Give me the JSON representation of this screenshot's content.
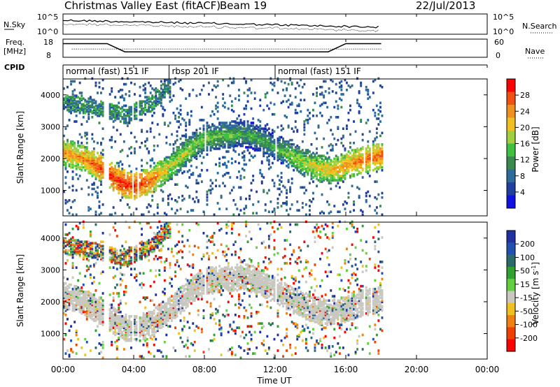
{
  "header": {
    "title": "Christmas Valley East (fitACF)",
    "beam": "Beam 19",
    "date": "22/Jul/2013"
  },
  "nsky_panel": {
    "left_label": "N.Sky",
    "left_ticks": [
      "10^5",
      "10^0"
    ],
    "right_ticks": [
      "10^5",
      "10^0"
    ],
    "right_label": "N.Search"
  },
  "freq_panel": {
    "left_label_line1": "Freq.",
    "left_label_line2": "[MHz]",
    "left_ticks": [
      "18",
      "8"
    ],
    "right_ticks": [
      "60",
      "0"
    ],
    "right_label": "Nave"
  },
  "cpid": {
    "label": "CPID",
    "segments": [
      {
        "text": "normal (fast) 151 IF",
        "start_hour": 0.0
      },
      {
        "text": "rbsp 201 IF",
        "start_hour": 6.0
      },
      {
        "text": "normal (fast) 151 IF",
        "start_hour": 12.0
      }
    ]
  },
  "x_axis": {
    "label": "Time UT",
    "range_hours": [
      0,
      24
    ],
    "ticks": [
      "00:00",
      "04:00",
      "08:00",
      "12:00",
      "16:00",
      "20:00",
      "00:00"
    ]
  },
  "colors": {
    "power_scale": [
      "#1010e0",
      "#2040a0",
      "#2e6a9a",
      "#3a8a50",
      "#40c040",
      "#a0d040",
      "#f0c020",
      "#f09020",
      "#f05010",
      "#ff0000"
    ],
    "velocity_scale": [
      "#2030a0",
      "#2050b0",
      "#2a6a6a",
      "#30a030",
      "#60d040",
      "#c8c8c0",
      "#f0c020",
      "#f08010",
      "#f04000",
      "#ff0000"
    ]
  },
  "chart_data": [
    {
      "type": "heatmap",
      "panel": "power",
      "ylabel": "Slant Range [km]",
      "ylim": [
        200,
        4500
      ],
      "yticks": [
        "1000",
        "2000",
        "3000",
        "4000"
      ],
      "xlim": [
        0,
        24
      ],
      "colorbar": {
        "label": "Power [dB]",
        "ticks": [
          "4",
          "8",
          "12",
          "16",
          "20",
          "24",
          "28"
        ],
        "range": [
          0,
          32
        ]
      },
      "band": {
        "center_km": [
          [
            0.0,
            2150
          ],
          [
            0.5,
            2080
          ],
          [
            1.0,
            2000
          ],
          [
            1.5,
            1850
          ],
          [
            2.0,
            1700
          ],
          [
            2.5,
            1500
          ],
          [
            3.0,
            1300
          ],
          [
            3.5,
            1150
          ],
          [
            4.0,
            1100
          ],
          [
            4.5,
            1180
          ],
          [
            5.0,
            1300
          ],
          [
            5.5,
            1500
          ],
          [
            6.0,
            1700
          ],
          [
            6.5,
            1950
          ],
          [
            7.0,
            2200
          ],
          [
            7.5,
            2450
          ],
          [
            8.0,
            2600
          ],
          [
            8.5,
            2650
          ],
          [
            9.0,
            2700
          ],
          [
            9.5,
            2700
          ],
          [
            10.0,
            2750
          ],
          [
            10.5,
            2700
          ],
          [
            11.0,
            2600
          ],
          [
            11.5,
            2450
          ],
          [
            12.0,
            2300
          ],
          [
            12.5,
            2150
          ],
          [
            13.0,
            2000
          ],
          [
            13.5,
            1850
          ],
          [
            14.0,
            1750
          ],
          [
            14.5,
            1650
          ],
          [
            15.0,
            1600
          ],
          [
            15.5,
            1650
          ],
          [
            16.0,
            1750
          ],
          [
            16.5,
            1850
          ],
          [
            17.0,
            1950
          ],
          [
            17.5,
            2000
          ],
          [
            18.0,
            2050
          ]
        ],
        "peak_db": [
          [
            0,
            24
          ],
          [
            1,
            24
          ],
          [
            2,
            28
          ],
          [
            3,
            30
          ],
          [
            4,
            30
          ],
          [
            5,
            26
          ],
          [
            6,
            20
          ],
          [
            7,
            18
          ],
          [
            8,
            16
          ],
          [
            9,
            16
          ],
          [
            10,
            14
          ],
          [
            11,
            14
          ],
          [
            12,
            14
          ],
          [
            13,
            18
          ],
          [
            14,
            20
          ],
          [
            15,
            22
          ],
          [
            16,
            24
          ],
          [
            17,
            26
          ],
          [
            18,
            26
          ]
        ]
      },
      "upper_band_km": [
        [
          0.0,
          3700
        ],
        [
          1.5,
          3600
        ],
        [
          3.5,
          3300
        ],
        [
          5.0,
          3700
        ],
        [
          5.8,
          4200
        ]
      ],
      "data_end_hour": 18.0
    },
    {
      "type": "heatmap",
      "panel": "velocity",
      "ylabel": "Slant Range [km]",
      "ylim": [
        200,
        4500
      ],
      "yticks": [
        "1000",
        "2000",
        "3000",
        "4000"
      ],
      "xlim": [
        0,
        24
      ],
      "colorbar": {
        "label": "Velocity [m s^-1]",
        "ticks": [
          "200",
          "100",
          "50",
          "15",
          "-15",
          "-50",
          "-100",
          "-200"
        ]
      },
      "dominant_velocity": "near zero (grey, -15 to 15 m/s) along the main scatter band",
      "data_end_hour": 18.0
    },
    {
      "type": "line",
      "panel": "frequency",
      "ylabel": "Freq. [MHz]",
      "ylim": [
        8,
        18
      ],
      "x": [
        0.0,
        2.5,
        3.5,
        6.0,
        15.0,
        16.0,
        18.0
      ],
      "values": [
        15.5,
        15.5,
        11.0,
        11.0,
        11.0,
        15.5,
        15.5
      ]
    }
  ]
}
